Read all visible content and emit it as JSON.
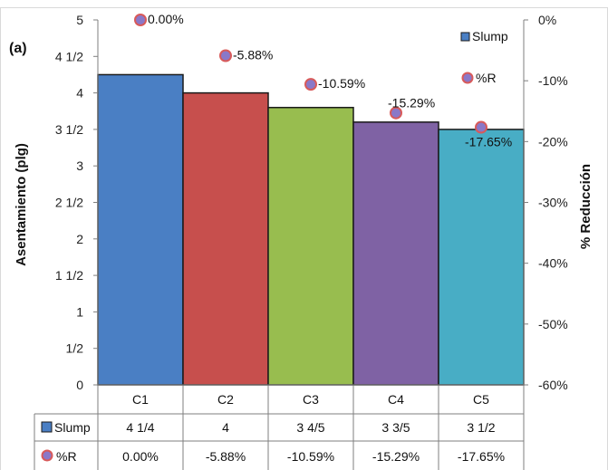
{
  "chart_data": {
    "type": "bar",
    "panel_label": "(a)",
    "categories": [
      "C1",
      "C2",
      "C3",
      "C4",
      "C5"
    ],
    "series": [
      {
        "name": "Slump",
        "kind": "bar",
        "axis": "left",
        "values": [
          4.25,
          4.0,
          3.8,
          3.6,
          3.5
        ],
        "table_labels": [
          "4 1/4",
          "4",
          "3 4/5",
          "3 3/5",
          "3 1/2"
        ],
        "color": "#4a7fc4"
      },
      {
        "name": "%R",
        "kind": "scatter",
        "axis": "right",
        "values": [
          0.0,
          -5.88,
          -10.59,
          -15.29,
          -17.65
        ],
        "labels": [
          "0.00%",
          "-5.88%",
          "-10.59%",
          "-15.29%",
          "-17.65%"
        ],
        "color": "#8a78c8",
        "edge_color": "#d85a5a"
      }
    ],
    "bar_colors": [
      "#4a7fc4",
      "#c74f4d",
      "#98bd4f",
      "#7f62a4",
      "#48adc5"
    ],
    "ylabel": "Asentamiento (plg)",
    "y2label": "% Reducción",
    "ylim": [
      0,
      5
    ],
    "y2lim": [
      -60,
      0
    ],
    "yticks": [
      "0",
      "1/2",
      "1",
      "1 1/2",
      "2",
      "2 1/2",
      "3",
      "3 1/2",
      "4",
      "4 1/2",
      "5"
    ],
    "y2ticks": [
      "0%",
      "-10%",
      "-20%",
      "-30%",
      "-40%",
      "-50%",
      "-60%"
    ],
    "legend_position": "top-right",
    "grid": false,
    "data_table": true
  }
}
